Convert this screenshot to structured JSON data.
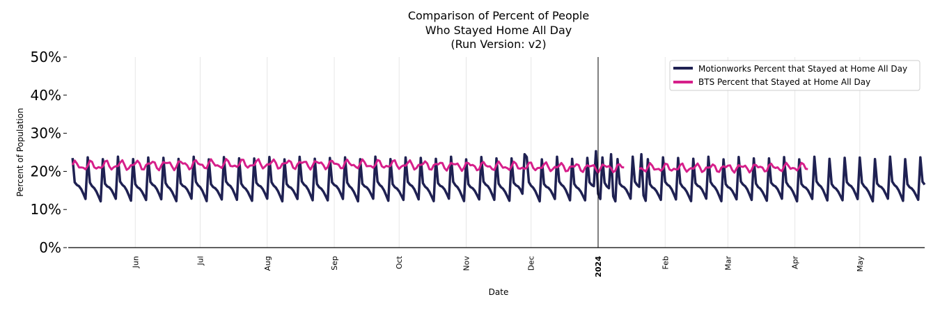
{
  "chart_data": {
    "type": "line",
    "title": [
      "Comparison of Percent of People",
      "Who Stayed Home All Day",
      "(Run Version: v2)"
    ],
    "xlabel": "Date",
    "ylabel": "Percent of Population",
    "x_range": [
      "2023-05-01",
      "2024-05-31"
    ],
    "ylim": [
      0,
      50
    ],
    "y_ticks": [
      0,
      10,
      20,
      30,
      40,
      50
    ],
    "y_tick_labels": [
      "0%",
      "10%",
      "20%",
      "30%",
      "40%",
      "50%"
    ],
    "x_ticks": [
      {
        "date": "2023-06-01",
        "label": "Jun",
        "bold": false
      },
      {
        "date": "2023-07-01",
        "label": "Jul",
        "bold": false
      },
      {
        "date": "2023-08-01",
        "label": "Aug",
        "bold": false
      },
      {
        "date": "2023-09-01",
        "label": "Sep",
        "bold": false
      },
      {
        "date": "2023-10-01",
        "label": "Oct",
        "bold": false
      },
      {
        "date": "2023-11-01",
        "label": "Nov",
        "bold": false
      },
      {
        "date": "2023-12-01",
        "label": "Dec",
        "bold": false
      },
      {
        "date": "2024-01-01",
        "label": "2024",
        "bold": true
      },
      {
        "date": "2024-02-01",
        "label": "Feb",
        "bold": false
      },
      {
        "date": "2024-03-01",
        "label": "Mar",
        "bold": false
      },
      {
        "date": "2024-04-01",
        "label": "Apr",
        "bold": false
      },
      {
        "date": "2024-05-01",
        "label": "May",
        "bold": false
      }
    ],
    "vertical_line": "2024-01-01",
    "grid": "vertical",
    "legend_position": "top-right",
    "series": [
      {
        "name": "Motionworks Percent that Stayed at Home All Day",
        "color": "#1f2152",
        "start": "2023-05-03",
        "end": "2024-05-31",
        "weekly_pattern": [
          23.5,
          17.0,
          16.2,
          15.8,
          15.0,
          13.8,
          12.5
        ],
        "peak_overrides": {
          "2023-11-28": 24.5,
          "2023-12-31": 25.3,
          "2024-01-07": 24.5,
          "2024-01-21": 24.5
        },
        "description": "Weekly cycle ranging roughly 12% to 24%"
      },
      {
        "name": "BTS Percent that Stayed at Home All Day",
        "color": "#d61f8a",
        "start": "2023-05-03",
        "end": "2024-04-07",
        "gap": [
          "2024-01-13",
          "2024-01-20"
        ],
        "typical_range": [
          19.5,
          23.5
        ],
        "description": "Relatively flat around 20-23%"
      }
    ]
  }
}
